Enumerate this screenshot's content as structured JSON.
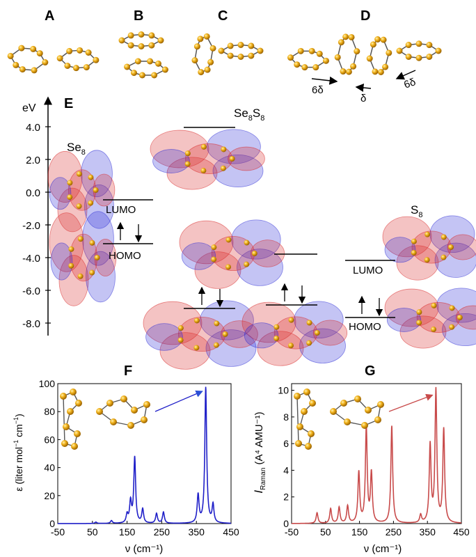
{
  "panels": {
    "a": "A",
    "b": "B",
    "c": "C",
    "d": "D",
    "e": "E",
    "f": "F",
    "g": "G"
  },
  "panel_d": {
    "arrow_left": "6δ",
    "arrow_mid": "δ",
    "arrow_right": "6δ"
  },
  "energy_diagram": {
    "axis_unit": "eV",
    "ticks": [
      "4.0",
      "2.0",
      "0.0",
      "-2.0",
      "-4.0",
      "-6.0",
      "-8.0"
    ],
    "se8_label": "Se",
    "se8_sub": "8",
    "se8s8_label_1": "Se",
    "se8s8_sub_1": "8",
    "se8s8_label_2": "S",
    "se8s8_sub_2": "8",
    "s8_label": "S",
    "s8_sub": "8",
    "lumo": "LUMO",
    "homo": "HOMO",
    "lumo_s8": "LUMO",
    "homo_s8": "HOMO"
  },
  "colors": {
    "f_line": "#1f1fc8",
    "g_line": "#c84a4a",
    "atom": "#e8a614",
    "lobe_red": "#d92626",
    "lobe_blue": "#2b2bd6"
  },
  "chart_data": [
    {
      "type": "line",
      "panel": "F",
      "xlabel": "ν (cm⁻¹)",
      "ylabel": "ε (liter mol⁻¹ cm⁻¹)",
      "xlim": [
        -50,
        450
      ],
      "ylim": [
        0,
        100
      ],
      "xticks": [
        "-50",
        "50",
        "150",
        "250",
        "350",
        "450"
      ],
      "yticks": [
        "0",
        "20",
        "40",
        "60",
        "80",
        "100"
      ],
      "peaks": [
        [
          60,
          1
        ],
        [
          105,
          2
        ],
        [
          150,
          6
        ],
        [
          160,
          15
        ],
        [
          172,
          47
        ],
        [
          195,
          10
        ],
        [
          235,
          7
        ],
        [
          255,
          8
        ],
        [
          355,
          20
        ],
        [
          377,
          97
        ],
        [
          398,
          13
        ]
      ]
    },
    {
      "type": "line",
      "panel": "G",
      "xlabel": "ν (cm⁻¹)",
      "ylabel": "I Raman (A⁴ AMU⁻¹)",
      "xlim": [
        -50,
        450
      ],
      "ylim": [
        0,
        10.5
      ],
      "xticks": [
        "-50",
        "50",
        "150",
        "250",
        "350",
        "450"
      ],
      "yticks": [
        "0",
        "2",
        "4",
        "6",
        "8",
        "10"
      ],
      "peaks": [
        [
          25,
          0.8
        ],
        [
          65,
          1.1
        ],
        [
          90,
          1.2
        ],
        [
          115,
          1.3
        ],
        [
          148,
          3.8
        ],
        [
          170,
          7.2
        ],
        [
          185,
          3.7
        ],
        [
          245,
          7.3
        ],
        [
          330,
          0.6
        ],
        [
          358,
          5.8
        ],
        [
          375,
          9.9
        ],
        [
          398,
          7.0
        ]
      ]
    }
  ],
  "panel_f": {
    "ylabel_pre": "ε (liter mol",
    "ylabel_sup1": "−1",
    "ylabel_mid": " cm",
    "ylabel_sup2": "−1",
    "ylabel_post": ")",
    "xlabel": "ν (cm⁻¹)"
  },
  "panel_g": {
    "ylabel_i": "I",
    "ylabel_sub": "Raman",
    "ylabel_rest": " (A⁴ AMU⁻¹)",
    "xlabel": "ν (cm⁻¹)"
  }
}
